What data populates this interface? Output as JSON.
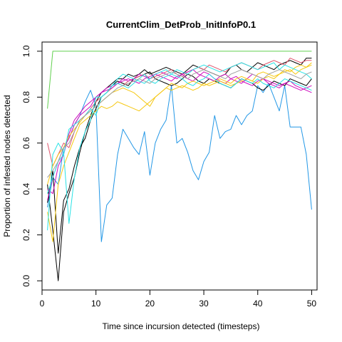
{
  "chart_data": {
    "type": "line",
    "title": "CurrentClim_DetProb_InitInfoP0.1",
    "xlabel": "Time since incursion detected (timesteps)",
    "ylabel": "Proportion of infested nodes detected",
    "xlim": [
      0,
      51
    ],
    "ylim": [
      -0.04,
      1.04
    ],
    "xticks": [
      0,
      10,
      20,
      30,
      40,
      50
    ],
    "yticks": [
      0.0,
      0.2,
      0.4,
      0.6,
      0.8,
      1.0
    ],
    "xtick_labels": [
      "0",
      "10",
      "20",
      "30",
      "40",
      "50"
    ],
    "ytick_labels": [
      "0.0",
      "0.2",
      "0.4",
      "0.6",
      "0.8",
      "1.0"
    ],
    "grid": false,
    "legend": "none",
    "series": [
      {
        "color": "#61D04F",
        "x": [
          1,
          2,
          3,
          50
        ],
        "y": [
          0.75,
          1.0,
          1.0,
          1.0
        ]
      },
      {
        "color": "#2297E6",
        "x": [
          1,
          2,
          3,
          4,
          5,
          6,
          7,
          8,
          9,
          10,
          11,
          12,
          13,
          14,
          15,
          16,
          17,
          18,
          19,
          20,
          21,
          22,
          23,
          24,
          25,
          26,
          27,
          28,
          29,
          30,
          31,
          32,
          33,
          34,
          35,
          36,
          37,
          38,
          39,
          40,
          41,
          42,
          43,
          44,
          45,
          46,
          47,
          48,
          49,
          50
        ],
        "y": [
          0.32,
          0.45,
          0.42,
          0.58,
          0.62,
          0.68,
          0.72,
          0.78,
          0.83,
          0.76,
          0.17,
          0.33,
          0.36,
          0.55,
          0.66,
          0.62,
          0.58,
          0.55,
          0.65,
          0.46,
          0.6,
          0.66,
          0.7,
          0.85,
          0.6,
          0.62,
          0.56,
          0.48,
          0.44,
          0.52,
          0.56,
          0.72,
          0.62,
          0.65,
          0.66,
          0.72,
          0.68,
          0.72,
          0.74,
          0.85,
          0.82,
          0.86,
          0.8,
          0.74,
          0.85,
          0.67,
          0.67,
          0.67,
          0.55,
          0.31
        ]
      },
      {
        "color": "#000000",
        "x": [
          1,
          2,
          3,
          4,
          5,
          6,
          7,
          8,
          9,
          10,
          11,
          12,
          13,
          14,
          15,
          16,
          17,
          18,
          19,
          20,
          21,
          22,
          23,
          24,
          25,
          26,
          27,
          28,
          29,
          30,
          31,
          32,
          33,
          34,
          35,
          36,
          37,
          38,
          39,
          40,
          41,
          42,
          43,
          44,
          45,
          46,
          47,
          48,
          49,
          50
        ],
        "y": [
          0.42,
          0.22,
          0.0,
          0.3,
          0.38,
          0.45,
          0.56,
          0.65,
          0.72,
          0.78,
          0.82,
          0.84,
          0.86,
          0.88,
          0.88,
          0.9,
          0.89,
          0.9,
          0.92,
          0.9,
          0.91,
          0.92,
          0.93,
          0.92,
          0.91,
          0.9,
          0.92,
          0.94,
          0.93,
          0.92,
          0.91,
          0.9,
          0.89,
          0.9,
          0.93,
          0.94,
          0.92,
          0.91,
          0.93,
          0.95,
          0.94,
          0.93,
          0.92,
          0.94,
          0.95,
          0.96,
          0.95,
          0.94,
          0.97,
          0.97
        ]
      },
      {
        "color": "#000000",
        "x": [
          1,
          2,
          3,
          4,
          5,
          6,
          7,
          8,
          9,
          10,
          11,
          12,
          13,
          14,
          15,
          16,
          17,
          18,
          19,
          20,
          21,
          22,
          23,
          24,
          25,
          26,
          27,
          28,
          29,
          30,
          31,
          32,
          33,
          34,
          35,
          36,
          37,
          38,
          39,
          40,
          41,
          42,
          43,
          44,
          45,
          46,
          47,
          48,
          49,
          50
        ],
        "y": [
          0.34,
          0.48,
          0.12,
          0.35,
          0.4,
          0.5,
          0.58,
          0.62,
          0.7,
          0.75,
          0.8,
          0.82,
          0.85,
          0.87,
          0.86,
          0.85,
          0.88,
          0.89,
          0.9,
          0.91,
          0.88,
          0.87,
          0.86,
          0.85,
          0.86,
          0.88,
          0.9,
          0.89,
          0.87,
          0.86,
          0.88,
          0.87,
          0.86,
          0.85,
          0.84,
          0.86,
          0.88,
          0.87,
          0.86,
          0.84,
          0.83,
          0.85,
          0.87,
          0.86,
          0.85,
          0.88,
          0.87,
          0.86,
          0.85,
          0.88
        ]
      },
      {
        "color": "#DF536B",
        "x": [
          1,
          2,
          3,
          4,
          5,
          6,
          7,
          8,
          9,
          10,
          11,
          12,
          13,
          14,
          15,
          16,
          17,
          18,
          19,
          20,
          21,
          22,
          23,
          24,
          25,
          26,
          27,
          28,
          29,
          30,
          31,
          32,
          33,
          34,
          35,
          36,
          37,
          38,
          39,
          40,
          41,
          42,
          43,
          44,
          45,
          46,
          47,
          48,
          49,
          50
        ],
        "y": [
          0.6,
          0.5,
          0.55,
          0.6,
          0.58,
          0.65,
          0.7,
          0.72,
          0.75,
          0.78,
          0.8,
          0.82,
          0.84,
          0.86,
          0.85,
          0.87,
          0.88,
          0.89,
          0.9,
          0.88,
          0.89,
          0.9,
          0.91,
          0.92,
          0.9,
          0.89,
          0.91,
          0.92,
          0.93,
          0.92,
          0.94,
          0.93,
          0.92,
          0.91,
          0.93,
          0.94,
          0.95,
          0.94,
          0.93,
          0.92,
          0.94,
          0.95,
          0.96,
          0.95,
          0.94,
          0.97,
          0.96,
          0.95,
          0.96,
          0.96
        ]
      },
      {
        "color": "#CD0BBC",
        "x": [
          1,
          2,
          3,
          4,
          5,
          6,
          7,
          8,
          9,
          10,
          11,
          12,
          13,
          14,
          15,
          16,
          17,
          18,
          19,
          20,
          21,
          22,
          23,
          24,
          25,
          26,
          27,
          28,
          29,
          30,
          31,
          32,
          33,
          34,
          35,
          36,
          37,
          38,
          39,
          40,
          41,
          42,
          43,
          44,
          45,
          46,
          47,
          48,
          49,
          50
        ],
        "y": [
          0.35,
          0.45,
          0.52,
          0.58,
          0.62,
          0.68,
          0.72,
          0.74,
          0.76,
          0.8,
          0.82,
          0.84,
          0.85,
          0.86,
          0.88,
          0.87,
          0.88,
          0.9,
          0.89,
          0.88,
          0.9,
          0.91,
          0.9,
          0.89,
          0.88,
          0.9,
          0.91,
          0.92,
          0.9,
          0.89,
          0.88,
          0.87,
          0.89,
          0.9,
          0.88,
          0.87,
          0.86,
          0.88,
          0.9,
          0.89,
          0.88,
          0.87,
          0.86,
          0.85,
          0.86,
          0.87,
          0.85,
          0.84,
          0.83,
          0.82
        ]
      },
      {
        "color": "#CD0BBC",
        "x": [
          1,
          2,
          3,
          4,
          5,
          6,
          7,
          8,
          9,
          10,
          11,
          12,
          13,
          14,
          15,
          16,
          17,
          18,
          19,
          20,
          21,
          22,
          23,
          24,
          25,
          26,
          27,
          28,
          29,
          30,
          31,
          32,
          33,
          34,
          35,
          36,
          37,
          38,
          39,
          40,
          41,
          42,
          43,
          44,
          45,
          46,
          47,
          48,
          49,
          50
        ],
        "y": [
          0.4,
          0.38,
          0.5,
          0.55,
          0.64,
          0.7,
          0.73,
          0.76,
          0.78,
          0.8,
          0.82,
          0.83,
          0.84,
          0.86,
          0.87,
          0.88,
          0.87,
          0.86,
          0.88,
          0.89,
          0.9,
          0.89,
          0.88,
          0.87,
          0.89,
          0.9,
          0.88,
          0.87,
          0.89,
          0.91,
          0.9,
          0.88,
          0.87,
          0.86,
          0.88,
          0.89,
          0.87,
          0.86,
          0.85,
          0.87,
          0.88,
          0.86,
          0.85,
          0.84,
          0.86,
          0.85,
          0.84,
          0.83,
          0.84,
          0.85
        ]
      },
      {
        "color": "#F5C710",
        "x": [
          1,
          2,
          3,
          4,
          5,
          6,
          7,
          8,
          9,
          10,
          11,
          12,
          13,
          14,
          15,
          16,
          17,
          18,
          19,
          20,
          21,
          22,
          23,
          24,
          25,
          26,
          27,
          28,
          29,
          30,
          31,
          32,
          33,
          34,
          35,
          36,
          37,
          38,
          39,
          40,
          41,
          42,
          43,
          44,
          45,
          46,
          47,
          48,
          49,
          50
        ],
        "y": [
          0.3,
          0.17,
          0.42,
          0.5,
          0.56,
          0.62,
          0.68,
          0.7,
          0.72,
          0.74,
          0.76,
          0.75,
          0.76,
          0.78,
          0.77,
          0.76,
          0.75,
          0.74,
          0.76,
          0.78,
          0.8,
          0.82,
          0.84,
          0.83,
          0.84,
          0.85,
          0.84,
          0.83,
          0.84,
          0.86,
          0.85,
          0.86,
          0.87,
          0.86,
          0.85,
          0.86,
          0.87,
          0.88,
          0.87,
          0.86,
          0.88,
          0.89,
          0.88,
          0.9,
          0.91,
          0.92,
          0.9,
          0.92,
          0.93,
          0.94
        ]
      },
      {
        "color": "#F5C710",
        "x": [
          1,
          2,
          3,
          4,
          5,
          6,
          7,
          8,
          9,
          10,
          11,
          12,
          13,
          14,
          15,
          16,
          17,
          18,
          19,
          20,
          21,
          22,
          23,
          24,
          25,
          26,
          27,
          28,
          29,
          30,
          31,
          32,
          33,
          34,
          35,
          36,
          37,
          38,
          39,
          40,
          41,
          42,
          43,
          44,
          45,
          46,
          47,
          48,
          49,
          50
        ],
        "y": [
          0.42,
          0.5,
          0.55,
          0.58,
          0.63,
          0.66,
          0.69,
          0.72,
          0.74,
          0.76,
          0.78,
          0.8,
          0.82,
          0.83,
          0.84,
          0.83,
          0.82,
          0.8,
          0.78,
          0.76,
          0.8,
          0.82,
          0.84,
          0.86,
          0.85,
          0.84,
          0.86,
          0.87,
          0.86,
          0.85,
          0.86,
          0.87,
          0.88,
          0.87,
          0.86,
          0.88,
          0.89,
          0.88,
          0.87,
          0.9,
          0.91,
          0.9,
          0.89,
          0.9,
          0.92,
          0.91,
          0.93,
          0.94,
          0.93,
          0.95
        ]
      },
      {
        "color": "#28E2E5",
        "x": [
          1,
          2,
          3,
          4,
          5,
          6,
          7,
          8,
          9,
          10,
          11,
          12,
          13,
          14,
          15,
          16,
          17,
          18,
          19,
          20,
          21,
          22,
          23,
          24,
          25,
          26,
          27,
          28,
          29,
          30,
          31,
          32,
          33,
          34,
          35,
          36,
          37,
          38,
          39,
          40,
          41,
          42,
          43,
          44,
          45,
          46,
          47,
          48,
          49,
          50
        ],
        "y": [
          0.22,
          0.55,
          0.6,
          0.56,
          0.25,
          0.45,
          0.58,
          0.65,
          0.7,
          0.8,
          0.8,
          0.82,
          0.85,
          0.86,
          0.85,
          0.84,
          0.86,
          0.88,
          0.9,
          0.87,
          0.86,
          0.88,
          0.89,
          0.9,
          0.92,
          0.91,
          0.9,
          0.92,
          0.93,
          0.94,
          0.93,
          0.92,
          0.91,
          0.92,
          0.93,
          0.94,
          0.95,
          0.94,
          0.93,
          0.92,
          0.93,
          0.94,
          0.95,
          0.92,
          0.94,
          0.93,
          0.92,
          0.91,
          0.9,
          0.88
        ]
      },
      {
        "color": "#28E2E5",
        "x": [
          1,
          2,
          3,
          4,
          5,
          6,
          7,
          8,
          9,
          10,
          11,
          12,
          13,
          14,
          15,
          16,
          17,
          18,
          19,
          20,
          21,
          22,
          23,
          24,
          25,
          26,
          27,
          28,
          29,
          30,
          31,
          32,
          33,
          34,
          35,
          36,
          37,
          38,
          39,
          40,
          41,
          42,
          43,
          44,
          45,
          46,
          47,
          48,
          49,
          50
        ],
        "y": [
          0.38,
          0.45,
          0.52,
          0.55,
          0.66,
          0.68,
          0.7,
          0.72,
          0.75,
          0.72,
          0.8,
          0.82,
          0.85,
          0.88,
          0.9,
          0.89,
          0.88,
          0.87,
          0.86,
          0.88,
          0.9,
          0.91,
          0.92,
          0.9,
          0.89,
          0.88,
          0.86,
          0.85,
          0.87,
          0.88,
          0.9,
          0.88,
          0.86,
          0.85,
          0.84,
          0.86,
          0.88,
          0.87,
          0.86,
          0.88,
          0.86,
          0.85,
          0.84,
          0.86,
          0.88,
          0.87,
          0.86,
          0.85,
          0.84,
          0.83
        ]
      },
      {
        "color": "#9E9E9E",
        "x": [
          1,
          2,
          3,
          4,
          5,
          6,
          7,
          8,
          9,
          10,
          11,
          12,
          13,
          14,
          15,
          16,
          17,
          18,
          19,
          20,
          21,
          22,
          23,
          24,
          25,
          26,
          27,
          28,
          29,
          30,
          31,
          32,
          33,
          34,
          35,
          36,
          37,
          38,
          39,
          40,
          41,
          42,
          43,
          44,
          45,
          46,
          47,
          48,
          49,
          50
        ],
        "y": [
          0.45,
          0.48,
          0.52,
          0.58,
          0.6,
          0.65,
          0.7,
          0.72,
          0.74,
          0.76,
          0.78,
          0.8,
          0.82,
          0.84,
          0.85,
          0.86,
          0.87,
          0.88,
          0.87,
          0.86,
          0.88,
          0.89,
          0.9,
          0.91,
          0.9,
          0.89,
          0.88,
          0.9,
          0.91,
          0.92,
          0.91,
          0.9,
          0.89,
          0.88,
          0.9,
          0.91,
          0.92,
          0.91,
          0.9,
          0.89,
          0.88,
          0.9,
          0.91,
          0.92,
          0.91,
          0.9,
          0.89,
          0.88,
          0.9,
          0.91
        ]
      }
    ]
  }
}
